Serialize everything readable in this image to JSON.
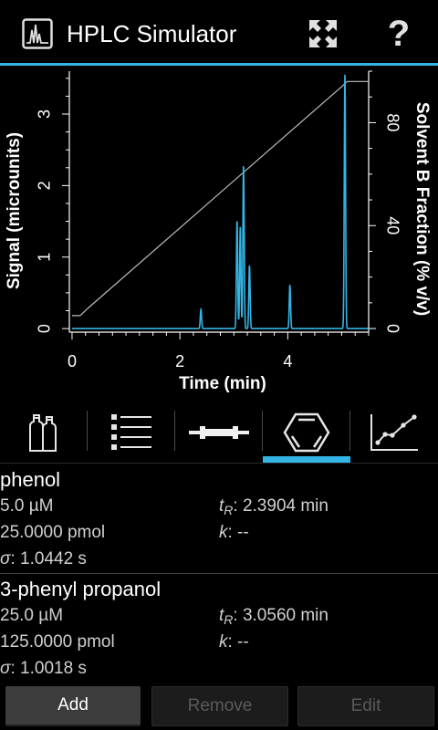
{
  "app": {
    "title": "HPLC Simulator"
  },
  "actionbar": {
    "expand_icon": "expand-icon",
    "help_label": "?"
  },
  "chart_data": {
    "type": "line",
    "xlabel": "Time (min)",
    "ylabel": "Signal (microunits)",
    "y2label": "Solvent B Fraction (% v/v)",
    "xlim": [
      -0.05,
      5.5
    ],
    "ylim": [
      -0.05,
      3.6
    ],
    "y2lim": [
      -1.4,
      100
    ],
    "x_ticks": [
      "0",
      "2",
      "4"
    ],
    "y_ticks": [
      "0",
      "1",
      "2",
      "3"
    ],
    "y2_ticks": [
      "0",
      "40",
      "80"
    ],
    "colors": {
      "signal": "#33b5e5",
      "gradient": "#bdbdbd"
    },
    "series": [
      {
        "role": "gradient",
        "x": [
          0,
          0.15,
          0.3,
          5.0,
          5.1,
          5.2,
          5.5
        ],
        "y": [
          5,
          5,
          8,
          94,
          96,
          96,
          96
        ]
      },
      {
        "role": "signal",
        "peaks": [
          {
            "t": 2.39,
            "h": 0.27
          },
          {
            "t": 3.06,
            "h": 1.5
          },
          {
            "t": 3.12,
            "h": 1.42
          },
          {
            "t": 3.18,
            "h": 2.27
          },
          {
            "t": 3.29,
            "h": 0.88
          },
          {
            "t": 4.04,
            "h": 0.61
          },
          {
            "t": 5.06,
            "h": 3.55
          }
        ]
      }
    ]
  },
  "tabs": [
    {
      "name": "tab-solvents",
      "icon": "bottles-icon"
    },
    {
      "name": "tab-compounds",
      "icon": "list-icon"
    },
    {
      "name": "tab-column",
      "icon": "column-icon"
    },
    {
      "name": "tab-structure",
      "icon": "benzene-icon",
      "selected": true
    },
    {
      "name": "tab-chart",
      "icon": "chart-icon"
    }
  ],
  "compounds": [
    {
      "name": "phenol",
      "conc": "5.0 µM",
      "amount": "25.0000 pmol",
      "sigma_label": "σ",
      "sigma_value": ": 1.0442 s",
      "tr_label": "t",
      "tr_sub": "R",
      "tr_value": ": 2.3904 min",
      "k_label": "k",
      "k_value": ": --"
    },
    {
      "name": "3-phenyl propanol",
      "conc": "25.0 µM",
      "amount": "125.0000 pmol",
      "sigma_label": "σ",
      "sigma_value": ": 1.0018 s",
      "tr_label": "t",
      "tr_sub": "R",
      "tr_value": ": 3.0560 min",
      "k_label": "k",
      "k_value": ": --"
    }
  ],
  "buttons": {
    "add": "Add",
    "remove": "Remove",
    "edit": "Edit"
  }
}
